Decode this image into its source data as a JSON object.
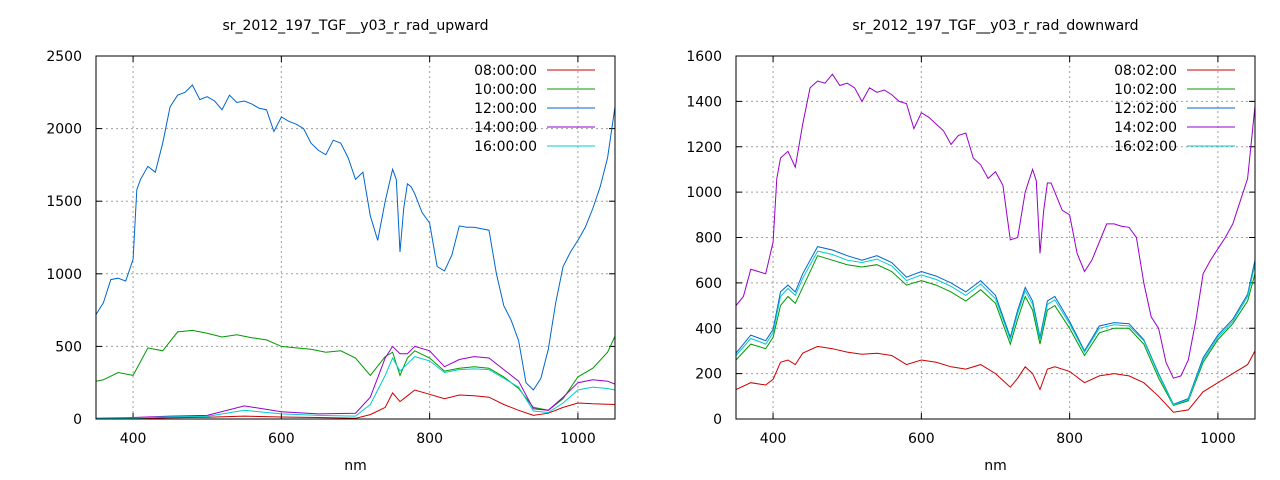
{
  "chart_data": [
    {
      "type": "line",
      "title": "sr_2012_197_TGF__y03_r_rad_upward",
      "xlabel": "nm",
      "ylabel": "",
      "xlim": [
        350,
        1050
      ],
      "ylim": [
        0,
        2500
      ],
      "xticks": [
        400,
        600,
        800,
        1000
      ],
      "yticks": [
        0,
        500,
        1000,
        1500,
        2000,
        2500
      ],
      "grid": true,
      "legend_position": "top-right",
      "series": [
        {
          "name": "08:00:00",
          "color": "#cc0000",
          "x": [
            350,
            400,
            450,
            500,
            550,
            600,
            650,
            700,
            720,
            740,
            750,
            760,
            770,
            780,
            800,
            820,
            840,
            860,
            880,
            900,
            920,
            940,
            960,
            980,
            1000,
            1020,
            1050
          ],
          "y": [
            2,
            3,
            8,
            12,
            20,
            14,
            10,
            5,
            30,
            80,
            180,
            120,
            160,
            200,
            170,
            140,
            165,
            160,
            150,
            100,
            60,
            25,
            40,
            80,
            110,
            105,
            100
          ]
        },
        {
          "name": "10:00:00",
          "color": "#009900",
          "x": [
            350,
            360,
            380,
            400,
            420,
            440,
            460,
            480,
            500,
            520,
            540,
            560,
            580,
            600,
            620,
            640,
            660,
            680,
            700,
            720,
            740,
            750,
            760,
            770,
            780,
            800,
            820,
            840,
            860,
            880,
            900,
            920,
            940,
            960,
            980,
            1000,
            1020,
            1040,
            1050
          ],
          "y": [
            260,
            270,
            320,
            300,
            490,
            470,
            600,
            610,
            590,
            565,
            580,
            560,
            545,
            500,
            490,
            480,
            460,
            470,
            420,
            300,
            430,
            460,
            300,
            420,
            470,
            420,
            330,
            350,
            360,
            350,
            290,
            210,
            80,
            60,
            140,
            290,
            350,
            460,
            570
          ]
        },
        {
          "name": "12:00:00",
          "color": "#0066cc",
          "x": [
            350,
            360,
            370,
            380,
            390,
            400,
            405,
            410,
            420,
            430,
            440,
            450,
            460,
            470,
            480,
            490,
            500,
            510,
            520,
            530,
            540,
            550,
            560,
            570,
            580,
            590,
            600,
            610,
            620,
            630,
            640,
            650,
            660,
            670,
            680,
            690,
            700,
            710,
            720,
            730,
            740,
            750,
            755,
            760,
            765,
            770,
            775,
            780,
            790,
            800,
            810,
            820,
            830,
            840,
            850,
            860,
            870,
            880,
            890,
            900,
            910,
            920,
            930,
            940,
            950,
            960,
            970,
            980,
            990,
            1000,
            1010,
            1020,
            1030,
            1040,
            1050
          ],
          "y": [
            720,
            800,
            960,
            970,
            950,
            1100,
            1580,
            1650,
            1740,
            1700,
            1900,
            2150,
            2230,
            2250,
            2300,
            2200,
            2220,
            2190,
            2130,
            2230,
            2180,
            2190,
            2170,
            2140,
            2130,
            1980,
            2080,
            2050,
            2030,
            2000,
            1900,
            1850,
            1820,
            1920,
            1900,
            1800,
            1650,
            1700,
            1400,
            1230,
            1500,
            1720,
            1650,
            1150,
            1450,
            1620,
            1600,
            1550,
            1420,
            1350,
            1050,
            1020,
            1130,
            1330,
            1320,
            1320,
            1310,
            1300,
            1000,
            780,
            680,
            540,
            250,
            200,
            280,
            480,
            800,
            1050,
            1150,
            1230,
            1320,
            1450,
            1600,
            1800,
            2150
          ]
        },
        {
          "name": "14:00:00",
          "color": "#9900cc",
          "x": [
            350,
            400,
            450,
            500,
            550,
            600,
            650,
            700,
            720,
            740,
            750,
            760,
            770,
            780,
            800,
            820,
            840,
            860,
            880,
            900,
            920,
            940,
            960,
            980,
            1000,
            1020,
            1040,
            1050
          ],
          "y": [
            5,
            10,
            20,
            25,
            90,
            50,
            35,
            40,
            150,
            420,
            500,
            450,
            450,
            500,
            470,
            360,
            410,
            430,
            420,
            340,
            260,
            70,
            60,
            150,
            250,
            270,
            260,
            240
          ]
        },
        {
          "name": "16:00:00",
          "color": "#00cccc",
          "x": [
            350,
            400,
            450,
            500,
            550,
            600,
            650,
            700,
            720,
            740,
            750,
            760,
            770,
            780,
            800,
            820,
            840,
            860,
            880,
            900,
            920,
            940,
            960,
            980,
            1000,
            1020,
            1040,
            1050
          ],
          "y": [
            3,
            6,
            15,
            18,
            60,
            35,
            25,
            20,
            100,
            300,
            420,
            330,
            380,
            430,
            400,
            320,
            340,
            345,
            340,
            280,
            220,
            55,
            45,
            110,
            200,
            220,
            210,
            200
          ]
        }
      ]
    },
    {
      "type": "line",
      "title": "sr_2012_197_TGF__y03_r_rad_downward",
      "xlabel": "nm",
      "ylabel": "",
      "xlim": [
        350,
        1050
      ],
      "ylim": [
        0,
        1600
      ],
      "xticks": [
        400,
        600,
        800,
        1000
      ],
      "yticks": [
        0,
        200,
        400,
        600,
        800,
        1000,
        1200,
        1400,
        1600
      ],
      "grid": true,
      "legend_position": "top-right",
      "series": [
        {
          "name": "08:02:00",
          "color": "#cc0000",
          "x": [
            350,
            370,
            390,
            400,
            410,
            420,
            430,
            440,
            460,
            480,
            500,
            520,
            540,
            560,
            580,
            600,
            620,
            640,
            660,
            680,
            700,
            720,
            730,
            740,
            750,
            760,
            770,
            780,
            800,
            820,
            840,
            860,
            880,
            900,
            920,
            940,
            960,
            980,
            1000,
            1020,
            1040,
            1050
          ],
          "y": [
            130,
            160,
            150,
            175,
            250,
            260,
            240,
            290,
            320,
            310,
            295,
            285,
            290,
            280,
            240,
            260,
            250,
            230,
            220,
            240,
            200,
            140,
            180,
            230,
            200,
            130,
            220,
            230,
            210,
            160,
            190,
            200,
            190,
            160,
            100,
            30,
            40,
            120,
            160,
            200,
            240,
            300
          ]
        },
        {
          "name": "10:02:00",
          "color": "#009900",
          "x": [
            350,
            370,
            390,
            400,
            410,
            420,
            430,
            440,
            460,
            480,
            500,
            520,
            540,
            560,
            580,
            600,
            620,
            640,
            660,
            680,
            700,
            720,
            730,
            740,
            750,
            760,
            770,
            780,
            800,
            820,
            840,
            860,
            880,
            900,
            920,
            940,
            960,
            980,
            1000,
            1020,
            1040,
            1050
          ],
          "y": [
            260,
            330,
            310,
            360,
            500,
            540,
            510,
            580,
            720,
            700,
            680,
            670,
            680,
            650,
            590,
            610,
            590,
            560,
            520,
            570,
            510,
            330,
            440,
            540,
            480,
            330,
            480,
            500,
            400,
            280,
            380,
            400,
            400,
            330,
            180,
            60,
            80,
            250,
            350,
            420,
            520,
            640
          ]
        },
        {
          "name": "12:02:00",
          "color": "#0066cc",
          "x": [
            350,
            370,
            390,
            400,
            410,
            420,
            430,
            440,
            460,
            480,
            500,
            520,
            540,
            560,
            580,
            600,
            620,
            640,
            660,
            680,
            700,
            720,
            730,
            740,
            750,
            760,
            770,
            780,
            800,
            820,
            840,
            860,
            880,
            900,
            920,
            940,
            960,
            980,
            1000,
            1020,
            1040,
            1050
          ],
          "y": [
            290,
            370,
            345,
            395,
            560,
            590,
            560,
            640,
            760,
            745,
            720,
            700,
            720,
            690,
            625,
            650,
            630,
            600,
            560,
            610,
            545,
            360,
            480,
            580,
            520,
            360,
            520,
            540,
            430,
            300,
            410,
            425,
            420,
            350,
            200,
            65,
            90,
            270,
            370,
            440,
            550,
            700
          ]
        },
        {
          "name": "14:02:00",
          "color": "#9900cc",
          "x": [
            350,
            360,
            370,
            380,
            390,
            400,
            405,
            410,
            420,
            430,
            440,
            450,
            460,
            470,
            480,
            490,
            500,
            510,
            520,
            530,
            540,
            550,
            560,
            570,
            580,
            590,
            600,
            610,
            620,
            630,
            640,
            650,
            660,
            670,
            680,
            690,
            700,
            710,
            720,
            730,
            740,
            750,
            755,
            760,
            765,
            770,
            775,
            780,
            790,
            800,
            810,
            820,
            830,
            840,
            850,
            860,
            870,
            880,
            890,
            900,
            910,
            920,
            930,
            940,
            950,
            960,
            970,
            980,
            990,
            1000,
            1010,
            1020,
            1030,
            1040,
            1050
          ],
          "y": [
            500,
            540,
            660,
            650,
            640,
            780,
            1060,
            1150,
            1180,
            1110,
            1300,
            1460,
            1490,
            1480,
            1520,
            1470,
            1480,
            1460,
            1400,
            1460,
            1440,
            1450,
            1430,
            1400,
            1390,
            1280,
            1350,
            1330,
            1300,
            1270,
            1210,
            1250,
            1260,
            1150,
            1120,
            1060,
            1090,
            1030,
            790,
            800,
            1000,
            1100,
            1050,
            730,
            920,
            1040,
            1040,
            1000,
            920,
            900,
            730,
            650,
            700,
            780,
            860,
            860,
            850,
            845,
            800,
            600,
            450,
            400,
            250,
            180,
            190,
            260,
            430,
            640,
            700,
            750,
            800,
            860,
            960,
            1060,
            1380
          ]
        },
        {
          "name": "16:02:00",
          "color": "#00cccc",
          "x": [
            350,
            370,
            390,
            400,
            410,
            420,
            430,
            440,
            460,
            480,
            500,
            520,
            540,
            560,
            580,
            600,
            620,
            640,
            660,
            680,
            700,
            720,
            730,
            740,
            750,
            760,
            770,
            780,
            800,
            820,
            840,
            860,
            880,
            900,
            920,
            940,
            960,
            980,
            1000,
            1020,
            1040,
            1050
          ],
          "y": [
            280,
            355,
            330,
            380,
            540,
            575,
            545,
            620,
            740,
            725,
            700,
            690,
            705,
            675,
            610,
            635,
            615,
            585,
            545,
            595,
            530,
            350,
            465,
            565,
            505,
            350,
            505,
            525,
            420,
            295,
            400,
            415,
            410,
            345,
            195,
            62,
            85,
            260,
            360,
            430,
            540,
            680
          ]
        }
      ]
    }
  ]
}
